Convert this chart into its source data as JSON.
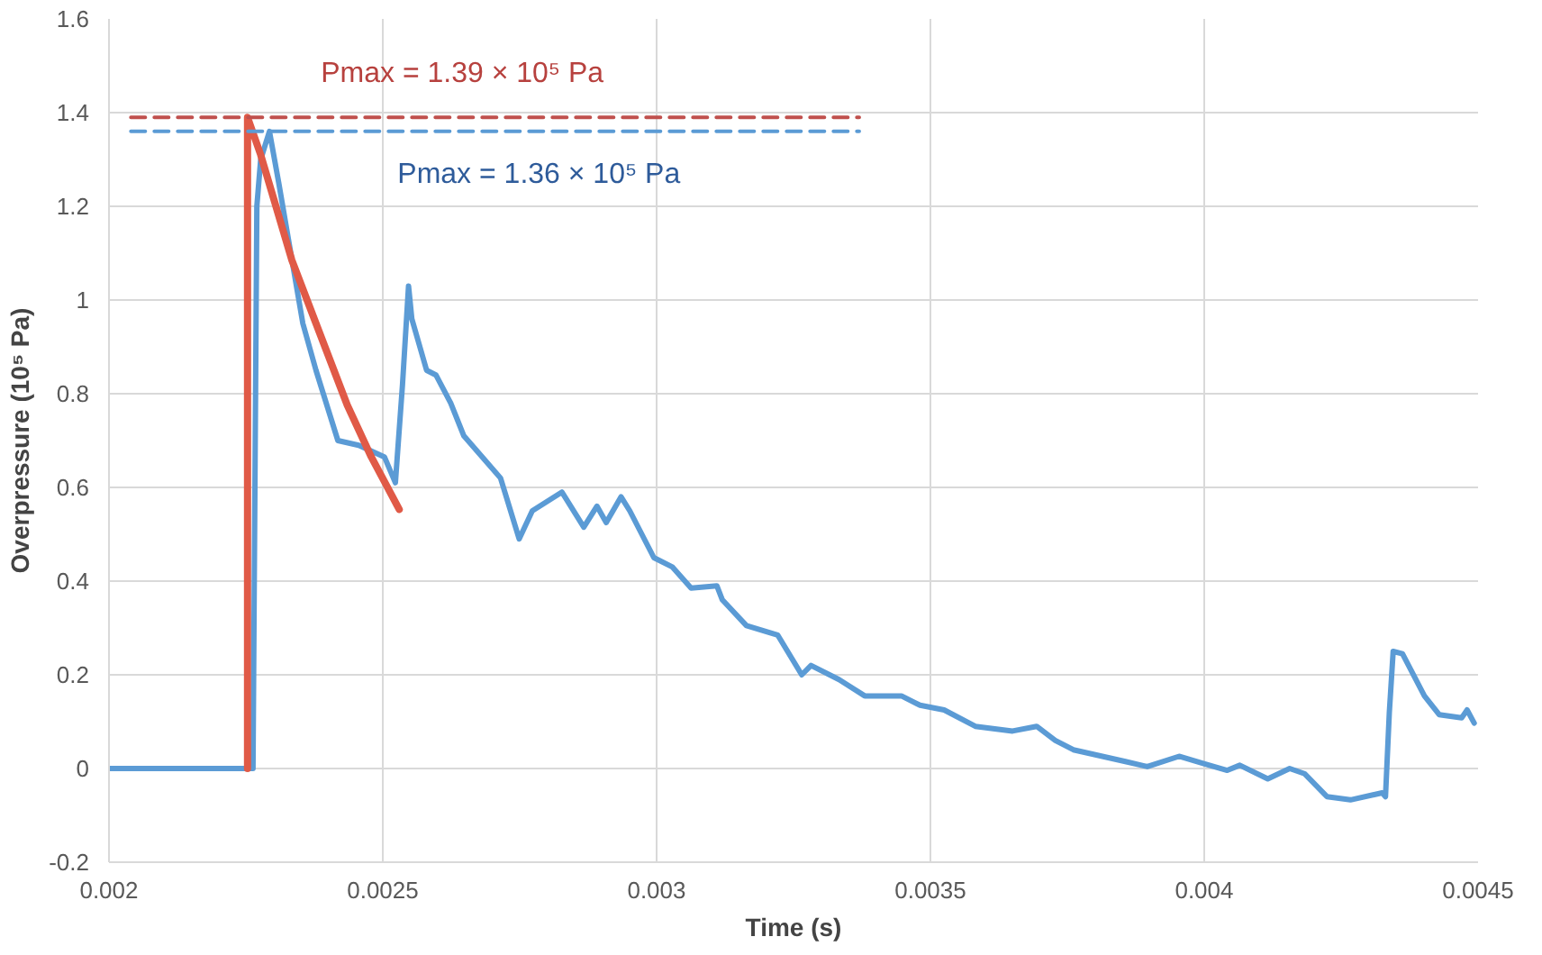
{
  "chart_data": {
    "type": "line",
    "xlabel": "Time (s)",
    "ylabel": "Overpressure (10⁵ Pa)",
    "xlim": [
      0.002,
      0.0045
    ],
    "xticks": [
      0.002,
      0.0025,
      0.003,
      0.0035,
      0.004,
      0.0045
    ],
    "ylim": [
      -0.2,
      1.6
    ],
    "yticks": [
      -0.2,
      0,
      0.2,
      0.4,
      0.6,
      0.8,
      1,
      1.2,
      1.4,
      1.6
    ],
    "grid": true,
    "marker": "none",
    "series": [
      {
        "color": "#5b9bd5",
        "line_style": "solid",
        "x": [
          0.002,
          0.00215,
          0.00225,
          0.002263,
          0.00227,
          0.002277,
          0.002293,
          0.00231,
          0.002354,
          0.002378,
          0.002418,
          0.002456,
          0.002503,
          0.002523,
          0.002536,
          0.002547,
          0.002553,
          0.00258,
          0.002597,
          0.002624,
          0.002648,
          0.002715,
          0.002749,
          0.002773,
          0.002827,
          0.002867,
          0.002891,
          0.002908,
          0.002935,
          0.002951,
          0.002995,
          0.003029,
          0.003063,
          0.00311,
          0.00312,
          0.003164,
          0.003221,
          0.003265,
          0.003282,
          0.003333,
          0.00338,
          0.003447,
          0.003481,
          0.003525,
          0.003582,
          0.00365,
          0.003694,
          0.003728,
          0.003761,
          0.003856,
          0.003896,
          0.003954,
          0.003998,
          0.004042,
          0.004065,
          0.004116,
          0.004156,
          0.004183,
          0.004224,
          0.004267,
          0.004325,
          0.004331,
          0.004338,
          0.004345,
          0.004362,
          0.004402,
          0.004429,
          0.00447,
          0.00448,
          0.004493
        ],
        "values": [
          0.0,
          0.0,
          0.0,
          0.0,
          1.2,
          1.3,
          1.36,
          1.25,
          0.95,
          0.85,
          0.7,
          0.69,
          0.665,
          0.61,
          0.82,
          1.03,
          0.96,
          0.85,
          0.84,
          0.78,
          0.71,
          0.62,
          0.49,
          0.55,
          0.59,
          0.515,
          0.56,
          0.525,
          0.58,
          0.55,
          0.45,
          0.43,
          0.385,
          0.39,
          0.36,
          0.305,
          0.285,
          0.2,
          0.22,
          0.19,
          0.155,
          0.155,
          0.135,
          0.125,
          0.09,
          0.08,
          0.09,
          0.06,
          0.04,
          0.015,
          0.004,
          0.026,
          0.011,
          -0.004,
          0.007,
          -0.022,
          0.0,
          -0.011,
          -0.06,
          -0.067,
          -0.052,
          -0.06,
          0.12,
          0.25,
          0.245,
          0.155,
          0.115,
          0.108,
          0.125,
          0.097
        ]
      },
      {
        "color": "#e05a47",
        "line_style": "solid",
        "x": [
          0.002253,
          0.002253,
          0.002277,
          0.002334,
          0.002378,
          0.002435,
          0.002479,
          0.00253
        ],
        "values": [
          0,
          1.39,
          1.31,
          1.085,
          0.95,
          0.776,
          0.665,
          0.553
        ]
      },
      {
        "color": "#c0504d",
        "line_style": "dashed",
        "x": [
          0.00204,
          0.00337
        ],
        "values": [
          1.39,
          1.39
        ]
      },
      {
        "color": "#5b9bd5",
        "line_style": "dashed",
        "x": [
          0.00204,
          0.00337
        ],
        "values": [
          1.36,
          1.36
        ]
      }
    ],
    "annotations": [
      "Pmax = 1.39 × 10⁵ Pa",
      "Pmax = 1.36 × 10⁵ Pa"
    ]
  }
}
